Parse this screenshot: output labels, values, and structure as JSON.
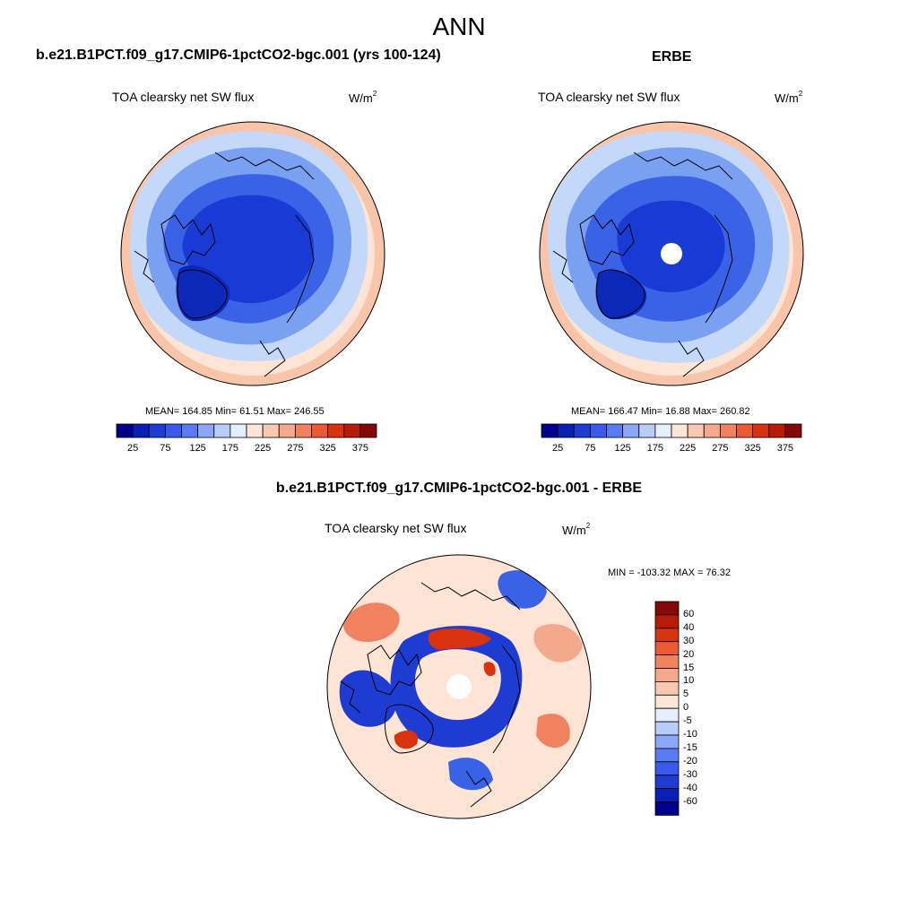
{
  "header": {
    "title": "ANN"
  },
  "panels": [
    {
      "case_title": "b.e21.B1PCT.f09_g17.CMIP6-1pctCO2-bgc.001 (yrs 100-124)",
      "subtitle": "TOA clearsky net SW flux",
      "units_base": "W/m",
      "units_exp": "2",
      "stats": "MEAN= 164.85  Min=  61.51  Max= 246.55",
      "colorbar": {
        "colors": [
          "#00008c",
          "#0a20b4",
          "#1e3cd2",
          "#3a5aec",
          "#5a7cf2",
          "#8aa8f6",
          "#b8ccf8",
          "#e4eefc",
          "#fde6d6",
          "#f9c8b0",
          "#f4a88c",
          "#f08260",
          "#ec5a34",
          "#d8330e",
          "#b81c08",
          "#840808"
        ],
        "tick_labels": [
          "25",
          "75",
          "125",
          "175",
          "225",
          "275",
          "325",
          "375"
        ]
      }
    },
    {
      "case_title": "ERBE",
      "subtitle": "TOA clearsky net SW flux",
      "units_base": "W/m",
      "units_exp": "2",
      "stats": "MEAN= 166.47  Min=  16.88  Max= 260.82",
      "colorbar": {
        "colors": [
          "#00008c",
          "#0a20b4",
          "#1e3cd2",
          "#3a5aec",
          "#5a7cf2",
          "#8aa8f6",
          "#b8ccf8",
          "#e4eefc",
          "#fde6d6",
          "#f9c8b0",
          "#f4a88c",
          "#f08260",
          "#ec5a34",
          "#d8330e",
          "#b81c08",
          "#840808"
        ],
        "tick_labels": [
          "25",
          "75",
          "125",
          "175",
          "225",
          "275",
          "325",
          "375"
        ]
      }
    }
  ],
  "diff": {
    "case_title": "b.e21.B1PCT.f09_g17.CMIP6-1pctCO2-bgc.001 - ERBE",
    "subtitle": "TOA clearsky net SW flux",
    "units_base": "W/m",
    "units_exp": "2",
    "stats": "MIN = -103.32 MAX =  76.32",
    "colorbar": {
      "colors": [
        "#840808",
        "#b81c08",
        "#d8330e",
        "#ec5a34",
        "#f08260",
        "#f4a88c",
        "#f9c8b0",
        "#fde6d6",
        "#e4eefc",
        "#b8ccf8",
        "#8aa8f6",
        "#5a7cf2",
        "#3a5aec",
        "#1e3cd2",
        "#0a20b4",
        "#00008c"
      ],
      "tick_labels": [
        "60",
        "40",
        "30",
        "20",
        "15",
        "10",
        "5",
        "0",
        "-5",
        "-10",
        "-15",
        "-20",
        "-30",
        "-40",
        "-60"
      ]
    }
  },
  "map_colors": {
    "deep_blue": "#1a3ad6",
    "mid_blue": "#3a62e6",
    "light_blue": "#7aa0f2",
    "pale_blue": "#c4d8fa",
    "pale_peach": "#fde4d4",
    "peach": "#f8c4aa",
    "red": "#e0401a",
    "dark_red": "#b01a06"
  }
}
